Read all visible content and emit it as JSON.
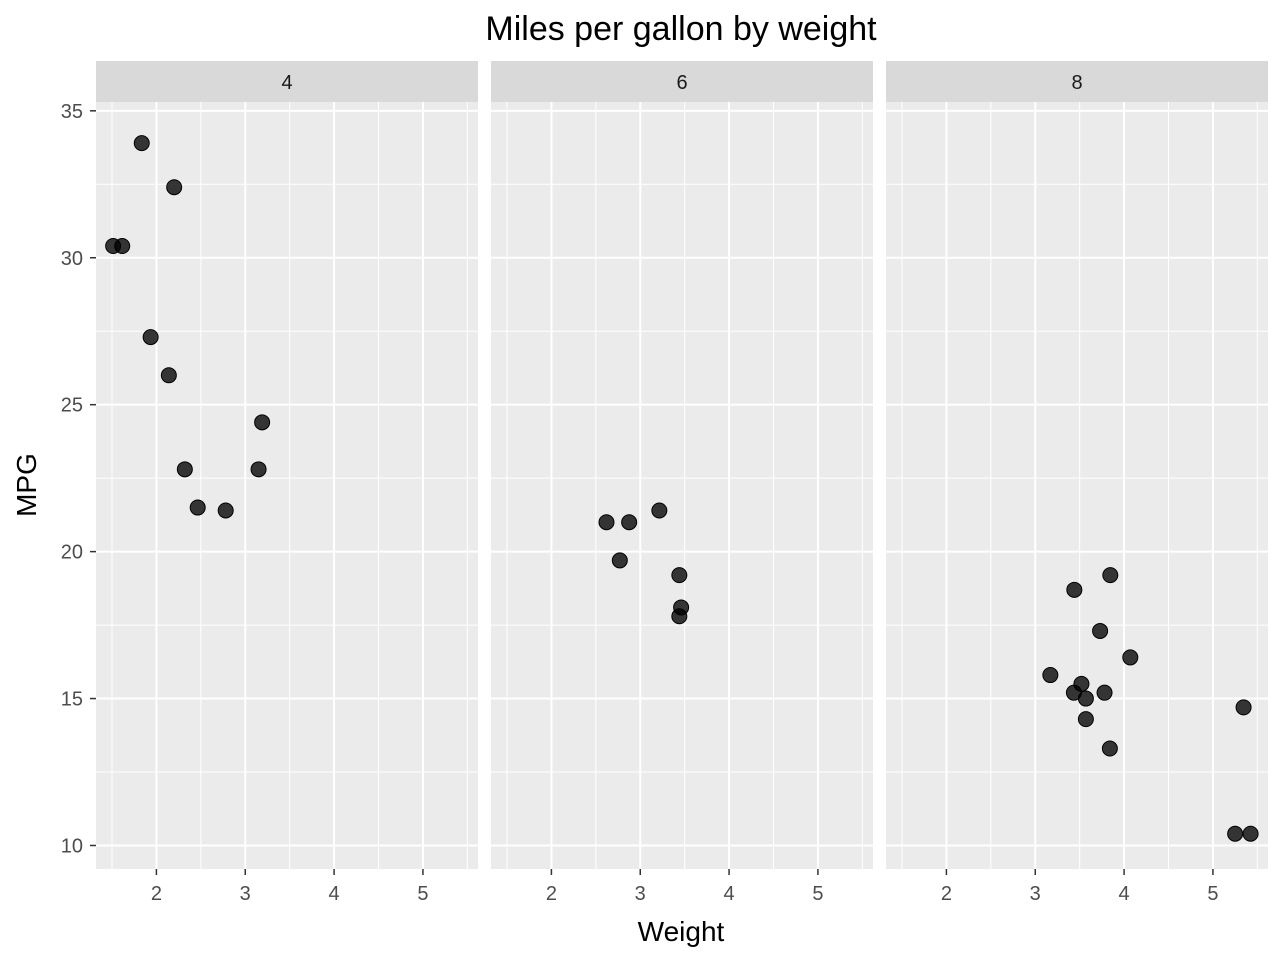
{
  "chart_data": {
    "type": "scatter",
    "title": "Miles per gallon by weight",
    "xlabel": "Weight",
    "ylabel": "MPG",
    "xlim": [
      1.32,
      5.62
    ],
    "ylim": [
      9.2,
      35.3
    ],
    "x_ticks": [
      2,
      3,
      4,
      5
    ],
    "y_ticks": [
      10,
      15,
      20,
      25,
      30,
      35
    ],
    "grid": true,
    "legend": "none",
    "facet_variable": "cyl",
    "panels": [
      {
        "label": "4",
        "points": [
          {
            "x": 1.513,
            "y": 30.4
          },
          {
            "x": 1.615,
            "y": 30.4
          },
          {
            "x": 1.835,
            "y": 33.9
          },
          {
            "x": 1.935,
            "y": 27.3
          },
          {
            "x": 2.14,
            "y": 26.0
          },
          {
            "x": 2.2,
            "y": 32.4
          },
          {
            "x": 2.32,
            "y": 22.8
          },
          {
            "x": 2.465,
            "y": 21.5
          },
          {
            "x": 2.78,
            "y": 21.4
          },
          {
            "x": 3.15,
            "y": 22.8
          },
          {
            "x": 3.19,
            "y": 24.4
          }
        ]
      },
      {
        "label": "6",
        "points": [
          {
            "x": 2.62,
            "y": 21.0
          },
          {
            "x": 2.77,
            "y": 19.7
          },
          {
            "x": 2.875,
            "y": 21.0
          },
          {
            "x": 3.215,
            "y": 21.4
          },
          {
            "x": 3.44,
            "y": 17.8
          },
          {
            "x": 3.44,
            "y": 19.2
          },
          {
            "x": 3.46,
            "y": 18.1
          }
        ]
      },
      {
        "label": "8",
        "points": [
          {
            "x": 3.17,
            "y": 15.8
          },
          {
            "x": 3.435,
            "y": 15.2
          },
          {
            "x": 3.44,
            "y": 18.7
          },
          {
            "x": 3.52,
            "y": 15.5
          },
          {
            "x": 3.57,
            "y": 15.0
          },
          {
            "x": 3.57,
            "y": 14.3
          },
          {
            "x": 3.73,
            "y": 17.3
          },
          {
            "x": 3.78,
            "y": 15.2
          },
          {
            "x": 3.84,
            "y": 13.3
          },
          {
            "x": 3.845,
            "y": 19.2
          },
          {
            "x": 4.07,
            "y": 16.4
          },
          {
            "x": 5.25,
            "y": 10.4
          },
          {
            "x": 5.345,
            "y": 14.7
          },
          {
            "x": 5.424,
            "y": 10.4
          }
        ]
      }
    ],
    "colors": {
      "panel_bg": "#ebebeb",
      "grid": "#ffffff",
      "strip_bg": "#d9d9d9",
      "point": "#000000",
      "tick": "#333333"
    }
  }
}
